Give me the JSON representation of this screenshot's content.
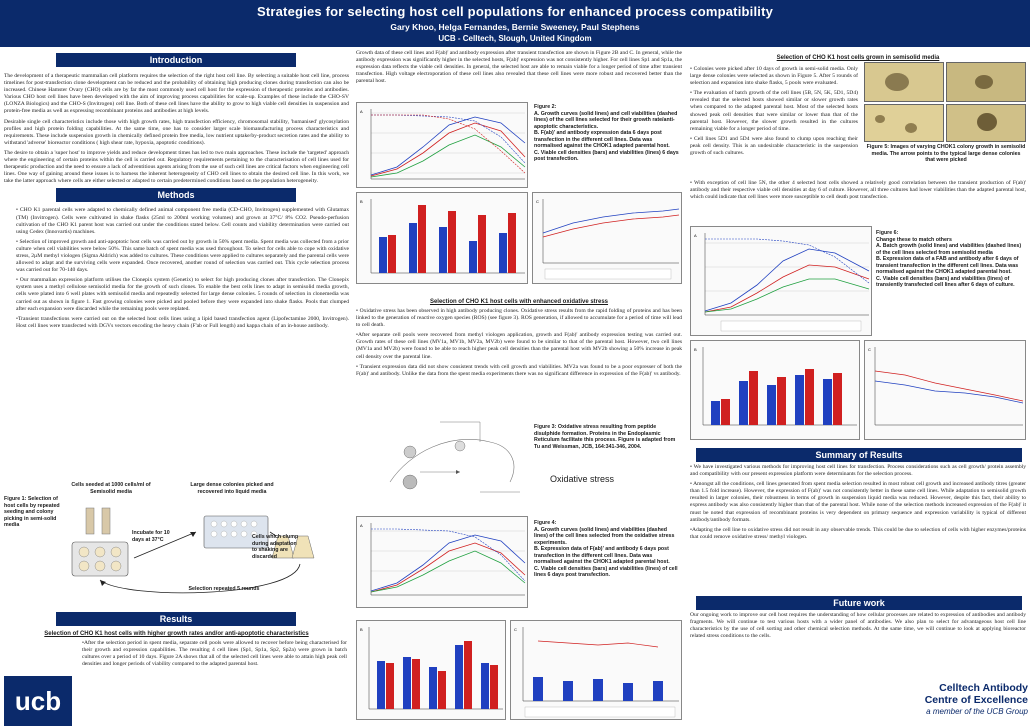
{
  "header": {
    "title": "Strategies for selecting host cell populations for enhanced process compatibility",
    "authors": "Gary Khoo, Helga Fernandes, Bernie Sweeney, Paul Stephens",
    "affiliation": "UCB - Celltech, Slough, United Kingdom"
  },
  "intro": {
    "heading": "Introduction",
    "p1": "The development of a therapeutic mammalian cell platform requires the selection of the right host cell line. By selecting a suitable host cell line, process timelines for post-transfection clone development can be reduced and the probability of obtaining high producing clones during transfection can also be increased. Chinese Hamster Ovary (CHO) cells are by far the most commonly used cell host for the expression of therapeutic proteins and antibodies. Various CHO host cell lines have been developed with the aim of improving process capabilities for scale-up. Examples of these include the CHO-SV (LONZA Biologics) and the CHO-S (Invitrogen) cell line. Both of these cell lines have the ability to grow to high viable cell densities in suspension and protein-free media as well as expressing recombinant proteins and antibodies at high levels.",
    "p2": "Desirable single cell characteristics include those with high growth rates, high transfection efficiency, chromosomal stability, 'humanised' glycosylation profiles and high protein folding capabilities. At the same time, one has to consider larger scale biomanufacturing process characteristics and requirements. These include suspension growth in chemically defined protein free media, low nutrient uptake/by-product secretion rates and the ability to withstand 'adverse' bioreactor conditions ( high shear rate, hypoxia, apoptotic conditions).",
    "p3": "The desire to obtain a 'super host' to improve yields and reduce development times has led to two main approaches. These include the 'targeted' approach where the engineering of certain proteins within the cell is carried out. Regulatory requirements pertaining to the characterisation of cell lines used for therapeutic production and the need to ensure a lack of adventitious agents arising from the use of such cell lines are critical factors when engineering cell lines. One way of gaining around these issues is to harness the inherent heterogeneity of CHO cell lines to obtain the desired cell line. In this work, we take the latter approach where cells are either selected or adapted to certain predetermined conditions based on the population heterogeneity."
  },
  "methods": {
    "heading": "Methods",
    "p1": "• CHO K1 parental cells were adapted to chemically defined animal component free media (CD-CHO, Invitrogen) supplemented with Glutamax (TM) (Invitrogen). Cells were cultivated in shake flasks (25ml to 200ml working volumes) and grown at 37°C/ 8% CO2. Pseudo-perfusion cultivation of the CHO K1 parent host was carried out under the conditions stated below. Cell counts and viability determination were carried out using Cedex (Innovartis) machines.",
    "p2": "• Selection of improved growth and anti-apoptotic host cells was carried out by growth in 50% spent media. Spent media was collected from a prior culture when cell viabilities were below 50%. This same batch of spent media was used throughout. To select for cells able to cope with oxidative stress, 2µM methyl viologen (Sigma Aldrich) was added to cultures. These conditions were applied to cultures separately and the parental cells were allowed to adapt and the surviving cells were expanded. Once recovered, another round of selection was carried out. This cycle selection process was carried out for 70-140 days.",
    "p3": "• Our mammalian expression platform utilises the Clonepix system (Genetix) to select for high producing clones after transfection. The Clonepix system uses a methyl cellulose semisolid media for the growth of such clones. To enable the best cells lines to adapt in semisolid media growth, cells were plated into 6 well plates with semisolid media and repeatedly selected for large dense colonies. 5 rounds of selection in clonemedia was carried out as shown in figure 1. Fast growing colonies were picked and pooled before they were expanded into shake flasks. Pools that clumped after each expansion were discarded while the remaining pools were replated.",
    "p4": "•Transient transfections were carried out on the selected host cells lines using a lipid based transfection agent (Lipofectamine 2000, Invitrogen). Host cell lines were transfected with DGVs vectors encoding the heavy chain (F'ab or Full length) and kappa chain of an in-house antibody."
  },
  "fig1": {
    "caption": "Figure 1: Selection of host cells by repeated seeding and colony picking in semi-solid media",
    "seeded": "Cells seeded at 1000 cells/ml of Semisolid media",
    "picked": "Large dense colonies picked and recovered into liquid media",
    "incubate": "Incubate for 10 days at 37°C",
    "clump": "Cells which clump during adaptation to shaking are discarded",
    "repeat": "Selection repeated 5 rounds"
  },
  "results": {
    "heading": "Results",
    "subhead": "Selection of CHO K1 host cells with higher growth rates and/or anti-apoptotic characteristics",
    "p1": "•After the selection period in spent media, separate cell pools were allowed to recover before being characterised for their growth and expression capabilities. The resulting 4 cell lines (Sp1, Sp1a, Sp2, Sp2a) were grown in batch cultures over a period of 10 days. Figure 2A shows that all of the selected cell lines were able to attain high peak cell densities and longer periods of viability compared to the adapted parental host."
  },
  "col2": {
    "p1": "Growth data of these cell lines and F(ab)' and antibody expression after transient transfection are shown in Figure 2B and C. In general, while the antibody expression was significantly higher in the selected hosts, F(ab)' expression was not consistently higher. For cell lines Sp1 and Sp1a, the expression data reflects the viable cell densities. In general, the selected host are able to remain viable for a longer period of time after transient transfection. High voltage electroporation of these cell lines also revealed that these cell lines were more robust and recovered better than the parental host.",
    "fig2caption": "Figure 2:\nA. Growth curves (solid lines) and cell viabilities (dashed lines) of the cell lines selected for their growth rate/anti-apoptotic characteristics.\nB. F(ab)' and antibody expression data 6 days post transfection in the different cell lines. Data was normalised against the CHOK1 adapted parental host.\nC. Viable cell densities (bars) and viabilities (lines) 6 days post transfection.",
    "oxhead": "Selection of CHO K1 host cells with enhanced oxidative stress",
    "ox1": "• Oxidative stress has been observed in high antibody producing clones. Oxidative stress results from the rapid folding of proteins and has been linked to the generation of reactive oxygen species (ROS) (see figure 3). ROS generation, if allowed to accumulate for a period of time will lead to cell death.",
    "ox2": "•After separate cell pools were recovered from methyl viologen application, growth and F(ab)' antibody expression testing was carried out. Growth rates of these cell lines (MV1a, MV1b, MV2a, MV2b) were found to be similar to that of the parental host. However, two cell lines (MV1a and MV2b) were found to be able to reach higher peak cell densities than the parental host with MV2b showing a 50% increase in peak cell density over the parental line.",
    "ox3": "• Transient expression data did not show consistent trends with cell growth and viabilities. MV2a was found to be a poor expresser of both the F(ab)' and antibody. Unlike the data from the spent media experiments there was no significant difference in expression of the F(ab)' vs antibody.",
    "fig3caption": "Figure 3: Oxidative stress resulting from peptide disulphide formation. Proteins in the Endoplasmic Reticulum facilitate this process. Figure is adapted from Tu and Weissman, JCB, 164:341-346, 2004.",
    "oxlabel": "Oxidative stress",
    "fig4caption": "Figure 4:\nA. Growth curves (solid lines) and viabilities (dashed lines) of the cell lines selected from the oxidative stress experiments.\nB. Expression data of F(ab)' and antibody 6 days post transfection in the different cell lines. Data was normalised against the CHOK1 adapted parental host.\nC. Viable cell densities (bars) and viabilities (lines) of cell lines 6 days post transfection."
  },
  "col3": {
    "head": "Selection of CHO K1 host cells grown in semisolid media",
    "b1": "• Colonies were picked after 10 days of growth in semi-solid media. Only large dense colonies were selected as shown in Figure 5. After 5 rounds of selection and expansion into shake flasks, 5 pools were evaluated.",
    "b2": "• The evaluation of batch growth of the cell lines (5B, 5N, 5K, 5D1, 5D4) revealed that the selected hosts showed similar or slower growth rates when compared to the adapted parental host. Most of the selected hosts showed peak cell densities that were similar or lower than that of the parental host. However, the slower growth resulted in the cultures remaining viable for a longer period of time.",
    "b3": "• Cell lines 5D1 and 5D4 were also found to clump upon reaching their peak cell density. This is an undesirable characteristic in the suspension growth of such cultures.",
    "b4": "• With exception of cell line 5N, the other 4 selected host cells showed a relatively good correlation between the transient production of F(ab)' antibody and their respective viable cell densities at day 6 of culture. However, all three cultures had lower viabilities than the adapted parental host, which could indicate that cell lines were more susceptible to cell death post transfection.",
    "fig5caption": "Figure 5: Images of varying CHOK1 colony growth in semisolid media. The arrow points to the typical large dense colonies that were picked",
    "fig6caption": "Figure 6:\nChange these to match others\nA. Batch growth (solid lines) and viabilities (dashed lines) of the cell lines selected from semisolid media\nB. Expression data of a FAB and antibody after 6 days of transient transfection in the different cell lines. Data was normalised against the CHOK1 adapted parental host.\nC. Viable cell densities (bars) and viabilities (lines) of transiently transfected cell lines after 6 days of culture.",
    "summary_head": "Summary of Results",
    "s1": "• We have investigated various methods for improving host cell lines for transfection. Process considerations such as cell growth/ protein assembly and compatibility with our present expression platform were determinants for the selection process.",
    "s2": "• Amongst all the conditions, cell lines generated from spent media selection resulted in most robust cell growth and increased antibody titres (greater than 1.5 fold increase). However, the expression of F(ab)' was not consistently better in these same cell lines. While adaptation to semisolid growth resulted in larger colonies, their robustness in terms of growth in suspension liquid media was reduced. However, despite this fact, their ability to express antibody was also consistently higher than that of the parental host. While none of the selection methods increased expression of the F(ab)' it must be noted that expression of recombinant proteins is very dependent on primary sequence and expression variability is typical of different antibody/antibody formats.",
    "s3": "•Adapting the cell line to oxidative stress did not result in any observable trends. This could be due to selection of cells with higher enzymes/proteins that could remove oxidative stress/ methyl viologen.",
    "future_head": "Future work",
    "f1": "Our ongoing work to improve our cell host requires the understanding of how cellular processes are related to expression of antibodies and antibody fragments. We will continue to test various hosts with a wider panel of antibodies. We also plan to select for advantageous host cell line characteristics by the use of cell sorting and other chemical selection methods. At the same time, we will continue to look at applying bioreactor related stress conditions to the cells."
  },
  "logos": {
    "ucb": "ucb",
    "celltech1": "Celltech Antibody",
    "celltech2": "Centre of Excellence",
    "celltech3": "a member of the UCB Group"
  },
  "colors": {
    "navy": "#0b2a6b",
    "series_blue": "#2040c0",
    "series_red": "#d02020"
  }
}
